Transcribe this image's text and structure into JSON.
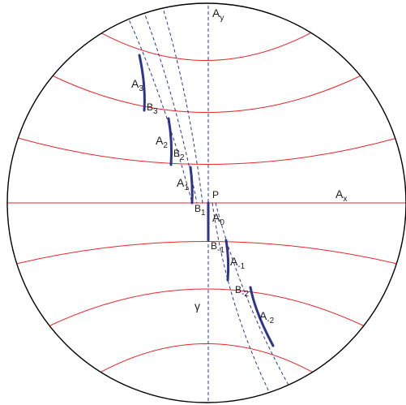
{
  "colors": {
    "circle": "#000000",
    "red_lines": "#e8262b",
    "segments": "#2b3590",
    "dashed": "#2b3590",
    "axis_dashed": "#2b3590"
  },
  "labels": {
    "ay": {
      "base": "A",
      "sub": "y"
    },
    "ax": {
      "base": "A",
      "sub": "x"
    },
    "p": "P",
    "gamma": "γ",
    "a3": {
      "base": "A",
      "sub": "3"
    },
    "b3": {
      "base": "B",
      "sub": "3"
    },
    "a2": {
      "base": "A",
      "sub": "2"
    },
    "b2": {
      "base": "B",
      "sub": "2"
    },
    "a1": {
      "base": "A",
      "sub": "1"
    },
    "b1": {
      "base": "B",
      "sub": "1"
    },
    "a0": {
      "base": "A",
      "sub": "0"
    },
    "bm1": {
      "base": "B",
      "sub": "-1"
    },
    "am1": {
      "base": "A",
      "sub": "-1"
    },
    "bm2": {
      "base": "B",
      "sub": "-2"
    },
    "am2": {
      "base": "A",
      "sub": "-2"
    }
  }
}
